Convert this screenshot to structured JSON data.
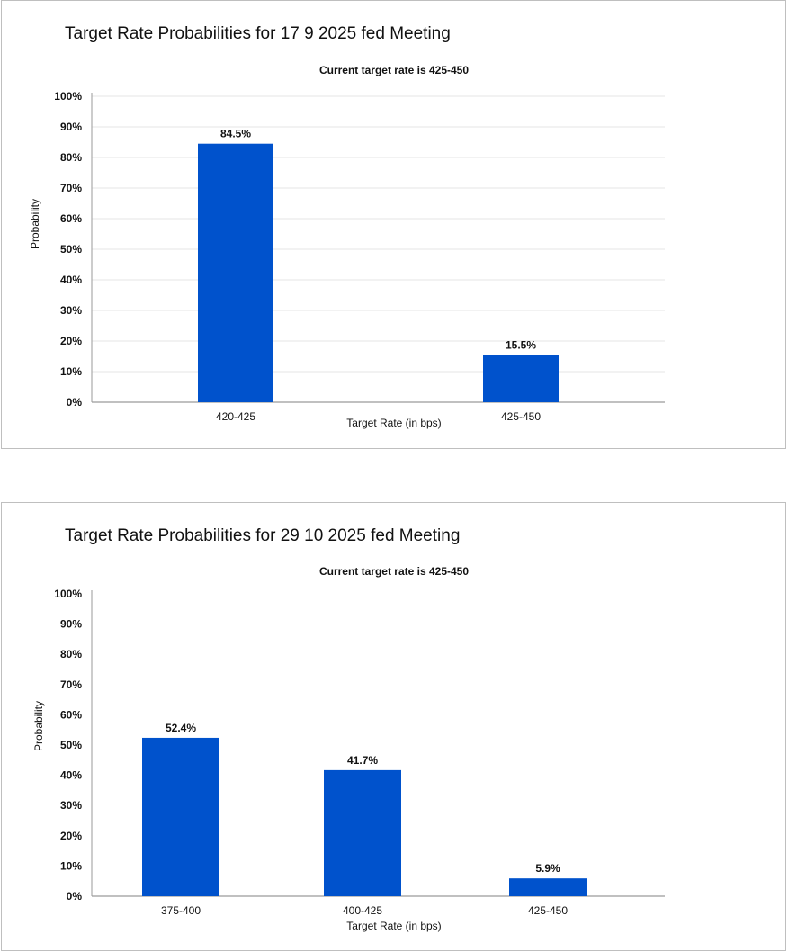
{
  "chart_data": [
    {
      "type": "bar",
      "title": "Target Rate Probabilities for 17 9 2025 fed Meeting",
      "subtitle": "Current target rate is 425-450",
      "xlabel": "Target Rate (in bps)",
      "ylabel": "Probability",
      "categories": [
        "420-425",
        "425-450"
      ],
      "values": [
        84.5,
        15.5
      ],
      "value_labels": [
        "84.5%",
        "15.5%"
      ],
      "y_ticks": [
        "0%",
        "10%",
        "20%",
        "30%",
        "40%",
        "50%",
        "60%",
        "70%",
        "80%",
        "90%",
        "100%"
      ],
      "ylim": [
        0,
        100
      ],
      "grid": true,
      "bar_color": "#0052cc"
    },
    {
      "type": "bar",
      "title": "Target Rate Probabilities for 29 10 2025 fed Meeting",
      "subtitle": "Current target rate is 425-450",
      "xlabel": "Target Rate (in bps)",
      "ylabel": "Probability",
      "categories": [
        "375-400",
        "400-425",
        "425-450"
      ],
      "values": [
        52.4,
        41.7,
        5.9
      ],
      "value_labels": [
        "52.4%",
        "41.7%",
        "5.9%"
      ],
      "y_ticks": [
        "0%",
        "10%",
        "20%",
        "30%",
        "40%",
        "50%",
        "60%",
        "70%",
        "80%",
        "90%",
        "100%"
      ],
      "ylim": [
        0,
        100
      ],
      "grid": false,
      "bar_color": "#0052cc"
    }
  ]
}
